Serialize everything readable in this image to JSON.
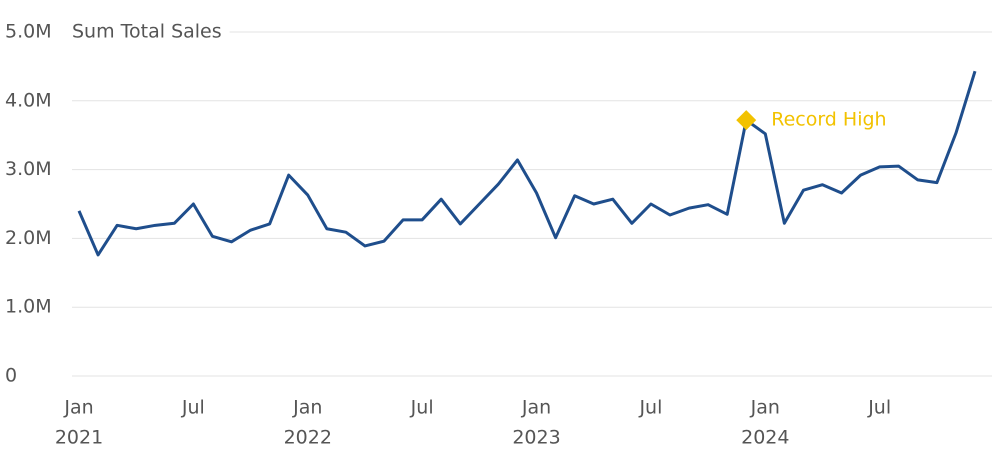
{
  "chart_data": {
    "type": "line",
    "y_label": "Sum Total Sales",
    "x": [
      "2021-01",
      "2021-02",
      "2021-03",
      "2021-04",
      "2021-05",
      "2021-06",
      "2021-07",
      "2021-08",
      "2021-09",
      "2021-10",
      "2021-11",
      "2021-12",
      "2022-01",
      "2022-02",
      "2022-03",
      "2022-04",
      "2022-05",
      "2022-06",
      "2022-07",
      "2022-08",
      "2022-09",
      "2022-10",
      "2022-11",
      "2022-12",
      "2023-01",
      "2023-02",
      "2023-03",
      "2023-04",
      "2023-05",
      "2023-06",
      "2023-07",
      "2023-08",
      "2023-09",
      "2023-10",
      "2023-11",
      "2023-12",
      "2024-01",
      "2024-02",
      "2024-03",
      "2024-04",
      "2024-05",
      "2024-06",
      "2024-07",
      "2024-08",
      "2024-09",
      "2024-10",
      "2024-11",
      "2024-12"
    ],
    "series": [
      {
        "name": "Sum Total Sales",
        "color": "#1f4e8c",
        "values": [
          2400000,
          1760000,
          2190000,
          2140000,
          2190000,
          2220000,
          2500000,
          2030000,
          1950000,
          2120000,
          2210000,
          2920000,
          2630000,
          2140000,
          2090000,
          1890000,
          1960000,
          2270000,
          2270000,
          2570000,
          2210000,
          2500000,
          2790000,
          3140000,
          2660000,
          2010000,
          2620000,
          2500000,
          2570000,
          2220000,
          2500000,
          2340000,
          2440000,
          2490000,
          2350000,
          3720000,
          3520000,
          2220000,
          2700000,
          2780000,
          2660000,
          2920000,
          3040000,
          3050000,
          2850000,
          2810000,
          3530000,
          4430000
        ]
      }
    ],
    "ylim": [
      0,
      5000000
    ],
    "yticks": [
      0,
      {
        "value": 1000000,
        "label": "1.0M"
      },
      {
        "value": 2000000,
        "label": "2.0M"
      },
      {
        "value": 3000000,
        "label": "3.0M"
      },
      {
        "value": 4000000,
        "label": "4.0M"
      },
      {
        "value": 5000000,
        "label": "5.0M"
      }
    ],
    "xticks": [
      {
        "value": "2021-01",
        "label": "Jan",
        "year": "2021"
      },
      {
        "value": "2021-07",
        "label": "Jul"
      },
      {
        "value": "2022-01",
        "label": "Jan",
        "year": "2022"
      },
      {
        "value": "2022-07",
        "label": "Jul"
      },
      {
        "value": "2023-01",
        "label": "Jan",
        "year": "2023"
      },
      {
        "value": "2023-07",
        "label": "Jul"
      },
      {
        "value": "2024-01",
        "label": "Jan",
        "year": "2024"
      },
      {
        "value": "2024-07",
        "label": "Jul"
      }
    ],
    "grid": true,
    "annotations": [
      {
        "text": "Record High",
        "x": "2023-12",
        "color": "#f2c200"
      }
    ]
  }
}
